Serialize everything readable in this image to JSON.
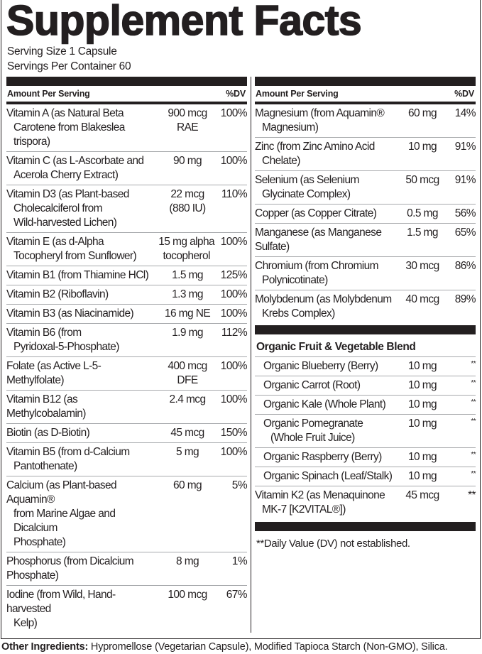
{
  "title": "Supplement Facts",
  "serving_size": "Serving Size 1 Capsule",
  "servings_per_container": "Servings Per Container 60",
  "header": {
    "amount": "Amount Per Serving",
    "dv": "%DV"
  },
  "left_rows": [
    {
      "name": [
        "Vitamin A (as Natural Beta",
        "Carotene from Blakeslea trispora)"
      ],
      "amount": [
        "900 mcg",
        "RAE"
      ],
      "dv": "100%"
    },
    {
      "name": [
        "Vitamin C (as L-Ascorbate and",
        "Acerola Cherry Extract)"
      ],
      "amount": [
        "90 mg"
      ],
      "dv": "100%"
    },
    {
      "name": [
        "Vitamin D3 (as Plant-based",
        "Cholecalciferol from",
        "Wild-harvested Lichen)"
      ],
      "amount": [
        "22 mcg",
        "(880 IU)"
      ],
      "dv": "110%"
    },
    {
      "name": [
        "Vitamin E (as d-Alpha",
        "Tocopheryl from Sunflower)"
      ],
      "amount": [
        "15 mg alpha",
        "tocopherol"
      ],
      "dv": "100%"
    },
    {
      "name": [
        "Vitamin B1 (from Thiamine HCl)"
      ],
      "amount": [
        "1.5 mg"
      ],
      "dv": "125%"
    },
    {
      "name": [
        "Vitamin B2 (Riboflavin)"
      ],
      "amount": [
        "1.3 mg"
      ],
      "dv": "100%"
    },
    {
      "name": [
        "Vitamin B3 (as Niacinamide)"
      ],
      "amount": [
        "16 mg NE"
      ],
      "dv": "100%"
    },
    {
      "name": [
        "Vitamin B6 (from",
        "Pyridoxal-5-Phosphate)"
      ],
      "amount": [
        "1.9 mg"
      ],
      "dv": "112%"
    },
    {
      "name": [
        "Folate (as Active L-5-Methylfolate)"
      ],
      "amount": [
        "400 mcg",
        "DFE"
      ],
      "dv": "100%"
    },
    {
      "name": [
        "Vitamin B12 (as Methylcobalamin)"
      ],
      "amount": [
        "2.4 mcg"
      ],
      "dv": "100%"
    },
    {
      "name": [
        "Biotin (as D-Biotin)"
      ],
      "amount": [
        "45 mcg"
      ],
      "dv": "150%"
    },
    {
      "name": [
        "Vitamin B5 (from d-Calcium",
        "Pantothenate)"
      ],
      "amount": [
        "5 mg"
      ],
      "dv": "100%"
    },
    {
      "name": [
        "Calcium (as Plant-based Aquamin®",
        "from Marine Algae and Dicalcium",
        "Phosphate)"
      ],
      "amount": [
        "60 mg"
      ],
      "dv": "5%"
    },
    {
      "name": [
        "Phosphorus (from Dicalcium Phosphate)"
      ],
      "amount": [
        "8 mg"
      ],
      "dv": "1%"
    },
    {
      "name": [
        "Iodine (from Wild, Hand-harvested",
        "Kelp)"
      ],
      "amount": [
        "100 mcg"
      ],
      "dv": "67%"
    }
  ],
  "right_rows": [
    {
      "name": [
        "Magnesium (from Aquamin®",
        "Magnesium)"
      ],
      "amount": [
        "60 mg"
      ],
      "dv": "14%"
    },
    {
      "name": [
        "Zinc (from Zinc Amino Acid",
        "Chelate)"
      ],
      "amount": [
        "10 mg"
      ],
      "dv": "91%"
    },
    {
      "name": [
        "Selenium (as Selenium",
        "Glycinate Complex)"
      ],
      "amount": [
        "50 mcg"
      ],
      "dv": "91%"
    },
    {
      "name": [
        "Copper (as Copper Citrate)"
      ],
      "amount": [
        "0.5 mg"
      ],
      "dv": "56%"
    },
    {
      "name": [
        "Manganese (as Manganese Sulfate)"
      ],
      "amount": [
        "1.5 mg"
      ],
      "dv": "65%"
    },
    {
      "name": [
        "Chromium (from Chromium",
        "Polynicotinate)"
      ],
      "amount": [
        "30 mcg"
      ],
      "dv": "86%"
    },
    {
      "name": [
        "Molybdenum (as Molybdenum",
        "Krebs Complex)"
      ],
      "amount": [
        "40 mcg"
      ],
      "dv": "89%"
    }
  ],
  "blend": {
    "title": "Organic Fruit & Vegetable Blend",
    "items": [
      {
        "name": [
          "Organic Blueberry (Berry)"
        ],
        "amount": [
          "10 mg"
        ],
        "dv": "**"
      },
      {
        "name": [
          "Organic Carrot (Root)"
        ],
        "amount": [
          "10 mg"
        ],
        "dv": "**"
      },
      {
        "name": [
          "Organic Kale (Whole Plant)"
        ],
        "amount": [
          "10 mg"
        ],
        "dv": "**"
      },
      {
        "name": [
          "Organic Pomegranate",
          "(Whole Fruit Juice)"
        ],
        "amount": [
          "10 mg"
        ],
        "dv": "**"
      },
      {
        "name": [
          "Organic Raspberry (Berry)"
        ],
        "amount": [
          "10 mg"
        ],
        "dv": "**"
      },
      {
        "name": [
          "Organic Spinach (Leaf/Stalk)"
        ],
        "amount": [
          "10 mg"
        ],
        "dv": "**"
      }
    ]
  },
  "k2_rows": [
    {
      "name": [
        "Vitamin K2 (as Menaquinone",
        "MK-7 [K2VITAL®])"
      ],
      "amount": [
        "45 mcg"
      ],
      "dv": "**"
    }
  ],
  "footnote": "**Daily Value (DV) not established.",
  "other_ingredients": {
    "label": "Other Ingredients:",
    "text": " Hypromellose (Vegetarian Capsule), Modified Tapioca Starch (Non-GMO), Silica."
  }
}
